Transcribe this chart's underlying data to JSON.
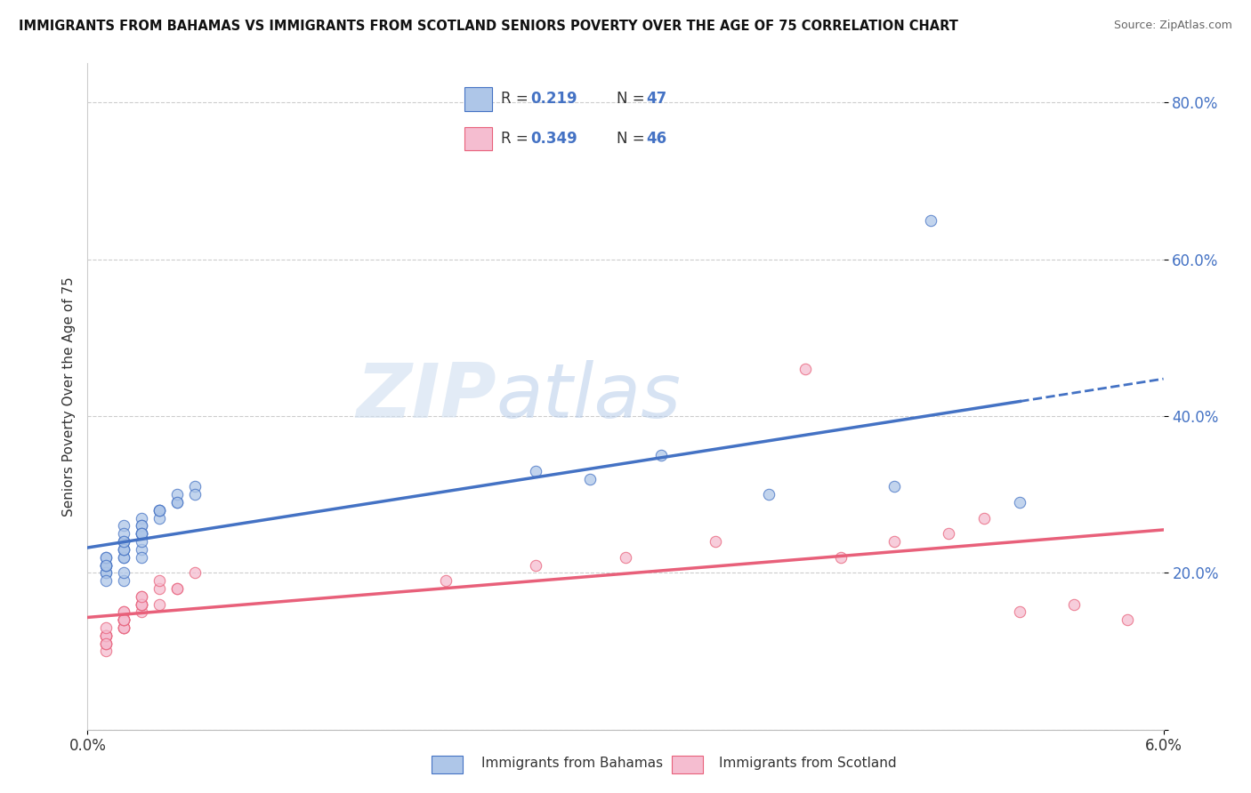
{
  "title": "IMMIGRANTS FROM BAHAMAS VS IMMIGRANTS FROM SCOTLAND SENIORS POVERTY OVER THE AGE OF 75 CORRELATION CHART",
  "source": "Source: ZipAtlas.com",
  "ylabel": "Seniors Poverty Over the Age of 75",
  "xlim": [
    0.0,
    0.06
  ],
  "ylim": [
    0.0,
    0.85
  ],
  "yticks": [
    0.0,
    0.2,
    0.4,
    0.6,
    0.8
  ],
  "ytick_labels": [
    "",
    "20.0%",
    "40.0%",
    "60.0%",
    "80.0%"
  ],
  "color_bahamas": "#aec6e8",
  "color_scotland": "#f5bdd0",
  "color_line_bahamas": "#4472c4",
  "color_line_scotland": "#e8607a",
  "watermark_zip": "ZIP",
  "watermark_atlas": "atlas",
  "label_bahamas": "Immigrants from Bahamas",
  "label_scotland": "Immigrants from Scotland",
  "legend_r1": "0.219",
  "legend_n1": "47",
  "legend_r2": "0.349",
  "legend_n2": "46",
  "bahamas_x": [
    0.001,
    0.002,
    0.001,
    0.003,
    0.002,
    0.001,
    0.002,
    0.003,
    0.001,
    0.002,
    0.003,
    0.002,
    0.001,
    0.003,
    0.002,
    0.001,
    0.002,
    0.003,
    0.002,
    0.001,
    0.003,
    0.002,
    0.001,
    0.002,
    0.003,
    0.002,
    0.001,
    0.004,
    0.003,
    0.002,
    0.005,
    0.004,
    0.003,
    0.005,
    0.004,
    0.006,
    0.005,
    0.004,
    0.003,
    0.006,
    0.025,
    0.028,
    0.032,
    0.038,
    0.045,
    0.047,
    0.052
  ],
  "bahamas_y": [
    0.21,
    0.22,
    0.2,
    0.23,
    0.19,
    0.21,
    0.24,
    0.22,
    0.2,
    0.23,
    0.25,
    0.22,
    0.21,
    0.24,
    0.26,
    0.22,
    0.23,
    0.25,
    0.2,
    0.19,
    0.27,
    0.24,
    0.22,
    0.25,
    0.26,
    0.23,
    0.21,
    0.28,
    0.26,
    0.24,
    0.29,
    0.27,
    0.25,
    0.3,
    0.28,
    0.31,
    0.29,
    0.28,
    0.25,
    0.3,
    0.33,
    0.32,
    0.35,
    0.3,
    0.31,
    0.65,
    0.29
  ],
  "scotland_x": [
    0.001,
    0.002,
    0.001,
    0.002,
    0.001,
    0.002,
    0.001,
    0.002,
    0.001,
    0.002,
    0.003,
    0.002,
    0.001,
    0.003,
    0.002,
    0.001,
    0.002,
    0.003,
    0.002,
    0.001,
    0.003,
    0.002,
    0.001,
    0.003,
    0.002,
    0.004,
    0.003,
    0.002,
    0.004,
    0.003,
    0.005,
    0.004,
    0.006,
    0.005,
    0.02,
    0.025,
    0.03,
    0.035,
    0.04,
    0.042,
    0.045,
    0.048,
    0.05,
    0.052,
    0.055,
    0.058
  ],
  "scotland_y": [
    0.12,
    0.13,
    0.11,
    0.14,
    0.1,
    0.13,
    0.12,
    0.15,
    0.11,
    0.14,
    0.15,
    0.13,
    0.12,
    0.16,
    0.14,
    0.12,
    0.13,
    0.16,
    0.14,
    0.11,
    0.17,
    0.15,
    0.13,
    0.16,
    0.14,
    0.18,
    0.16,
    0.14,
    0.19,
    0.17,
    0.18,
    0.16,
    0.2,
    0.18,
    0.19,
    0.21,
    0.22,
    0.24,
    0.46,
    0.22,
    0.24,
    0.25,
    0.27,
    0.15,
    0.16,
    0.14
  ]
}
